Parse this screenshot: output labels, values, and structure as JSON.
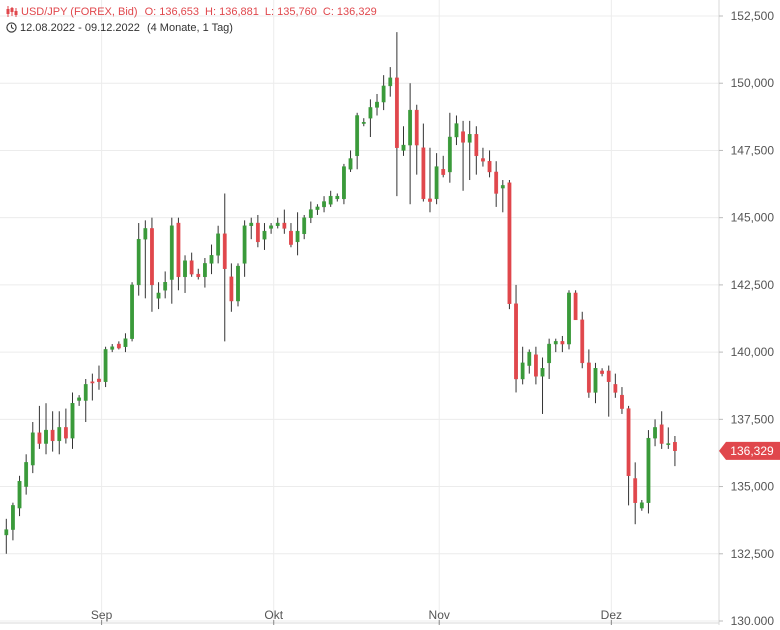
{
  "header": {
    "symbol_line": "USD/JPY (FOREX, Bid)",
    "open": "O: 136,653",
    "high": "H: 136,881",
    "low": "L: 135,760",
    "close": "C: 136,329",
    "date_range": "12.08.2022 - 09.12.2022",
    "period": "(4 Monate, 1 Tag)"
  },
  "colors": {
    "up": "#3a9a3a",
    "down": "#e0474c",
    "grid": "#ececec",
    "axis_text": "#555555",
    "price_tag": "#e0474c"
  },
  "icons": {
    "chart_icon": "candlestick-chart-icon",
    "clock_icon": "clock-icon"
  },
  "chart_data": {
    "type": "candlestick",
    "ylim": [
      130000,
      152500
    ],
    "y_ticks": [
      {
        "value": 130000,
        "label": "130,000"
      },
      {
        "value": 132500,
        "label": "132,500"
      },
      {
        "value": 135000,
        "label": "135,000"
      },
      {
        "value": 137500,
        "label": "137,500"
      },
      {
        "value": 140000,
        "label": "140,000"
      },
      {
        "value": 142500,
        "label": "142,500"
      },
      {
        "value": 145000,
        "label": "145,000"
      },
      {
        "value": 147500,
        "label": "147,500"
      },
      {
        "value": 150000,
        "label": "150,000"
      },
      {
        "value": 152500,
        "label": "152,500"
      }
    ],
    "x_ticks": [
      {
        "index": 15,
        "label": "Sep"
      },
      {
        "index": 41,
        "label": "Okt"
      },
      {
        "index": 66,
        "label": "Nov"
      },
      {
        "index": 92,
        "label": "Dez"
      }
    ],
    "last_price_label": "136,329",
    "last_price": 136329,
    "candles": [
      [
        133.2,
        133.8,
        132.5,
        133.4
      ],
      [
        133.4,
        134.4,
        133.0,
        134.3
      ],
      [
        134.2,
        135.4,
        133.9,
        135.2
      ],
      [
        135.0,
        136.2,
        134.7,
        135.9
      ],
      [
        135.8,
        137.4,
        135.5,
        137.0
      ],
      [
        137.0,
        138.0,
        136.4,
        136.6
      ],
      [
        136.6,
        138.1,
        136.2,
        137.1
      ],
      [
        137.1,
        137.8,
        136.3,
        136.7
      ],
      [
        136.7,
        137.8,
        136.2,
        137.2
      ],
      [
        137.2,
        137.9,
        136.6,
        136.8
      ],
      [
        136.8,
        138.5,
        136.4,
        138.1
      ],
      [
        138.2,
        138.4,
        138.0,
        138.3
      ],
      [
        138.2,
        139.0,
        137.4,
        138.8
      ],
      [
        138.9,
        139.2,
        138.2,
        138.85
      ],
      [
        139.0,
        139.5,
        138.6,
        138.9
      ],
      [
        138.9,
        140.2,
        138.7,
        140.1
      ],
      [
        140.1,
        140.3,
        140.0,
        140.2
      ],
      [
        140.3,
        140.4,
        140.1,
        140.15
      ],
      [
        140.2,
        140.7,
        140.0,
        140.5
      ],
      [
        140.5,
        142.6,
        140.4,
        142.5
      ],
      [
        142.5,
        144.8,
        142.1,
        144.2
      ],
      [
        144.2,
        144.9,
        142.0,
        144.6
      ],
      [
        144.6,
        145.0,
        141.5,
        142.5
      ],
      [
        142.0,
        142.6,
        141.6,
        142.2
      ],
      [
        142.3,
        143.0,
        142.0,
        142.6
      ],
      [
        142.7,
        145.0,
        141.8,
        144.7
      ],
      [
        144.8,
        145.0,
        142.3,
        142.8
      ],
      [
        142.8,
        143.6,
        142.2,
        143.4
      ],
      [
        143.4,
        143.7,
        142.8,
        142.9
      ],
      [
        142.9,
        143.1,
        142.7,
        142.8
      ],
      [
        142.8,
        143.5,
        142.4,
        143.3
      ],
      [
        143.3,
        144.0,
        142.9,
        143.6
      ],
      [
        143.6,
        144.7,
        143.3,
        144.4
      ],
      [
        144.4,
        145.9,
        140.4,
        143.1
      ],
      [
        142.8,
        143.3,
        141.5,
        141.9
      ],
      [
        141.9,
        143.3,
        141.7,
        143.2
      ],
      [
        143.3,
        144.9,
        142.8,
        144.7
      ],
      [
        144.7,
        145.0,
        144.2,
        144.8
      ],
      [
        144.8,
        145.1,
        143.9,
        144.1
      ],
      [
        144.2,
        144.8,
        143.8,
        144.5
      ],
      [
        144.6,
        144.8,
        144.4,
        144.7
      ],
      [
        144.7,
        145.0,
        144.6,
        144.8
      ],
      [
        144.8,
        145.3,
        144.4,
        144.6
      ],
      [
        144.5,
        144.8,
        143.9,
        144.0
      ],
      [
        144.1,
        145.2,
        143.6,
        144.5
      ],
      [
        144.4,
        145.1,
        144.2,
        145.0
      ],
      [
        145.0,
        145.6,
        144.8,
        145.3
      ],
      [
        145.3,
        145.5,
        145.1,
        145.4
      ],
      [
        145.4,
        145.8,
        145.2,
        145.6
      ],
      [
        145.5,
        146.0,
        145.4,
        145.8
      ],
      [
        145.7,
        145.9,
        145.6,
        145.8
      ],
      [
        145.7,
        147.0,
        145.5,
        146.9
      ],
      [
        146.8,
        147.5,
        146.7,
        147.2
      ],
      [
        147.3,
        148.9,
        146.8,
        148.8
      ],
      [
        148.5,
        148.7,
        148.4,
        148.55
      ],
      [
        148.7,
        149.4,
        148.0,
        149.1
      ],
      [
        149.1,
        149.6,
        148.8,
        149.3
      ],
      [
        149.3,
        150.3,
        149.0,
        149.9
      ],
      [
        149.9,
        150.6,
        149.5,
        150.2
      ],
      [
        150.2,
        151.9,
        145.8,
        147.6
      ],
      [
        147.5,
        148.4,
        147.3,
        147.7
      ],
      [
        147.7,
        150.0,
        145.5,
        149.0
      ],
      [
        149.0,
        149.2,
        146.6,
        147.7
      ],
      [
        147.6,
        148.5,
        145.6,
        145.7
      ],
      [
        145.7,
        147.6,
        145.2,
        145.6
      ],
      [
        145.7,
        147.4,
        145.5,
        146.9
      ],
      [
        146.8,
        147.3,
        146.5,
        146.6
      ],
      [
        146.7,
        148.9,
        146.3,
        148.0
      ],
      [
        148.0,
        148.8,
        147.7,
        148.5
      ],
      [
        148.2,
        148.6,
        146.0,
        147.8
      ],
      [
        147.8,
        148.6,
        146.4,
        148.1
      ],
      [
        148.1,
        148.4,
        146.6,
        147.3
      ],
      [
        147.2,
        147.6,
        146.9,
        147.1
      ],
      [
        147.1,
        147.5,
        146.5,
        146.7
      ],
      [
        146.7,
        147.1,
        145.4,
        145.9
      ],
      [
        146.1,
        146.4,
        145.2,
        146.2
      ],
      [
        146.3,
        146.4,
        141.6,
        141.8
      ],
      [
        141.8,
        142.5,
        138.5,
        139.0
      ],
      [
        139.0,
        140.2,
        138.8,
        139.6
      ],
      [
        139.5,
        140.1,
        139.2,
        140.0
      ],
      [
        139.9,
        140.2,
        138.8,
        139.1
      ],
      [
        139.1,
        139.8,
        137.7,
        139.4
      ],
      [
        139.6,
        140.5,
        139.0,
        140.3
      ],
      [
        140.3,
        140.5,
        140.0,
        140.4
      ],
      [
        140.4,
        140.6,
        140.0,
        140.3
      ],
      [
        140.3,
        142.3,
        140.1,
        142.2
      ],
      [
        142.2,
        142.3,
        141.2,
        141.2
      ],
      [
        141.2,
        141.5,
        139.4,
        139.6
      ],
      [
        139.6,
        140.1,
        138.3,
        138.5
      ],
      [
        138.5,
        139.6,
        138.1,
        139.4
      ],
      [
        139.3,
        139.4,
        139.1,
        139.2
      ],
      [
        139.3,
        139.5,
        137.6,
        138.9
      ],
      [
        138.8,
        139.2,
        138.3,
        138.5
      ],
      [
        138.4,
        138.7,
        137.7,
        137.9
      ],
      [
        137.9,
        138.0,
        134.3,
        135.4
      ],
      [
        135.3,
        135.9,
        133.6,
        134.4
      ],
      [
        134.2,
        134.5,
        134.1,
        134.4
      ],
      [
        134.4,
        137.1,
        134.0,
        136.8
      ],
      [
        136.8,
        137.5,
        136.5,
        137.2
      ],
      [
        137.3,
        137.8,
        136.4,
        136.6
      ],
      [
        136.6,
        137.2,
        136.4,
        136.6
      ],
      [
        136.65,
        136.88,
        135.76,
        136.33
      ]
    ]
  }
}
